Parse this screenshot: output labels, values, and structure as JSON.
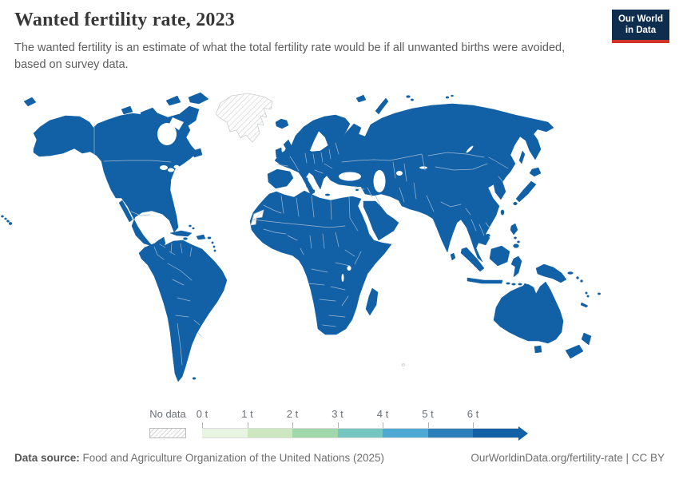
{
  "header": {
    "title": "Wanted fertility rate, 2023",
    "subtitle": "The wanted fertility is an estimate of what the total fertility rate would be if all unwanted births were avoided, based on survey data."
  },
  "logo": {
    "line1": "Our World",
    "line2": "in Data",
    "bg_color": "#0f2e4f",
    "accent_color": "#d13427"
  },
  "legend": {
    "no_data_label": "No data",
    "bins": [
      {
        "label": "0 t",
        "color": "#e9f5e3"
      },
      {
        "label": "1 t",
        "color": "#cde8c0"
      },
      {
        "label": "2 t",
        "color": "#a1d8ab"
      },
      {
        "label": "3 t",
        "color": "#75c6c0"
      },
      {
        "label": "4 t",
        "color": "#4fa9d5"
      },
      {
        "label": "5 t",
        "color": "#2c7fb8"
      },
      {
        "label": "6 t",
        "color": "#1261a7"
      }
    ]
  },
  "map": {
    "land_color": "#1261a7",
    "border_color": "#9fb8d0",
    "no_data_regions": [
      "Greenland",
      "Western Sahara"
    ]
  },
  "footer": {
    "source_label": "Data source:",
    "source_text": " Food and Agriculture Organization of the United Nations (2025)",
    "link": "OurWorldinData.org/fertility-rate",
    "separator": " | ",
    "license": "CC BY"
  },
  "chart_data": {
    "type": "choropleth",
    "title": "Wanted fertility rate, 2023",
    "unit": "t",
    "legend_bin_edge_labels": [
      "0 t",
      "1 t",
      "2 t",
      "3 t",
      "4 t",
      "5 t",
      "6 t"
    ],
    "legend_bin_colors": [
      "#e9f5e3",
      "#cde8c0",
      "#a1d8ab",
      "#75c6c0",
      "#4fa9d5",
      "#2c7fb8",
      "#1261a7"
    ],
    "no_data_regions": [
      "Greenland",
      "Western Sahara"
    ],
    "observation": "All countries with data are shaded in the darkest bin color (6 t and above); only Greenland and Western Sahara are shown as No data."
  }
}
